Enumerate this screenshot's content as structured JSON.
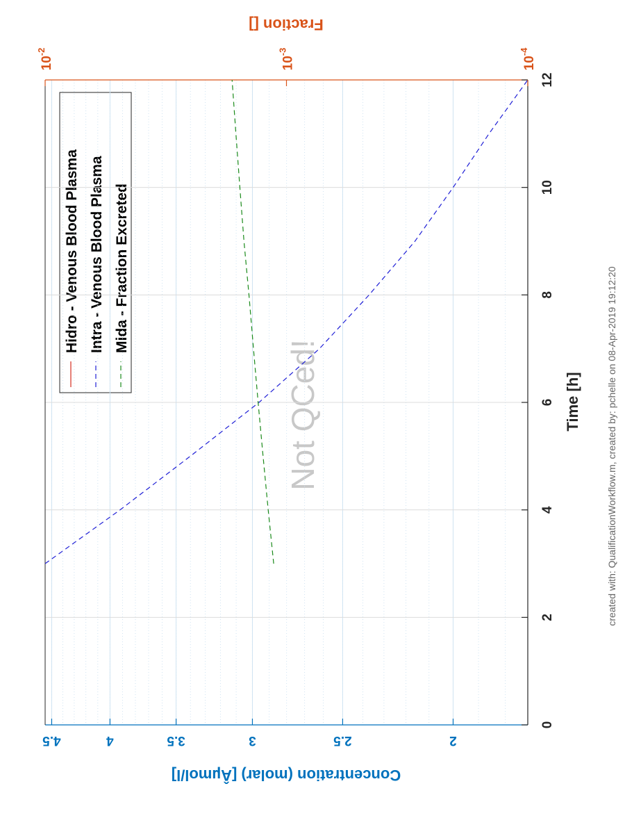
{
  "chart_data": {
    "type": "line",
    "orientation": "rotated-90-ccw",
    "xlabel": "Time [h]",
    "xlim": [
      0,
      12
    ],
    "x_ticks": [
      "0",
      "2",
      "4",
      "6",
      "8",
      "10",
      "12"
    ],
    "ylabel_left": "Concentration (molar) [Âµmol/l]",
    "ylim_left": [
      1.72,
      4.56
    ],
    "y_left_ticks": [
      "2",
      "2.5",
      "3",
      "3.5",
      "4",
      "4.5"
    ],
    "y_left_scale": "log",
    "ylabel_right": "Fraction []",
    "ylim_right": [
      0.0001,
      0.01
    ],
    "y_right_ticks": [
      {
        "base": "10",
        "exp": "-4"
      },
      {
        "base": "10",
        "exp": "-3"
      },
      {
        "base": "10",
        "exp": "-2"
      }
    ],
    "y_right_scale": "log",
    "grid": true,
    "legend_position": "top-left",
    "series": [
      {
        "name": "Hidro - Venous Blood Plasma",
        "axis": "left",
        "color": "#d62c1d",
        "dash": "solid",
        "x": [],
        "y": []
      },
      {
        "name": "Intra - Venous Blood Plasma",
        "axis": "left",
        "color": "#1f1fd6",
        "dash": "dashed",
        "x": [
          3,
          4,
          5,
          6,
          7,
          8,
          9,
          10,
          11,
          12
        ],
        "y": [
          4.56,
          3.92,
          3.4,
          2.96,
          2.62,
          2.37,
          2.16,
          2.0,
          1.86,
          1.72
        ]
      },
      {
        "name": "Mida - Fraction Excreted",
        "axis": "right",
        "color": "#1a8a1a",
        "dash": "dashed",
        "x": [
          3,
          4,
          5,
          6,
          7,
          8,
          9,
          10,
          11,
          12
        ],
        "y": [
          0.00113,
          0.00119,
          0.00125,
          0.00131,
          0.00137,
          0.00143,
          0.0015,
          0.00156,
          0.00162,
          0.00168
        ]
      }
    ],
    "annotation": "Not QCed!"
  },
  "footer": {
    "credit": "created with: QualificationWorkflow.m, created by: pchelle on 08-Apr-2019 19:12:20"
  },
  "colors": {
    "left_axis": "#0072bd",
    "right_axis": "#d95319",
    "main_axis": "#262626",
    "grid_left": "#cfe3f2",
    "grid_main": "#dcdcdc"
  }
}
